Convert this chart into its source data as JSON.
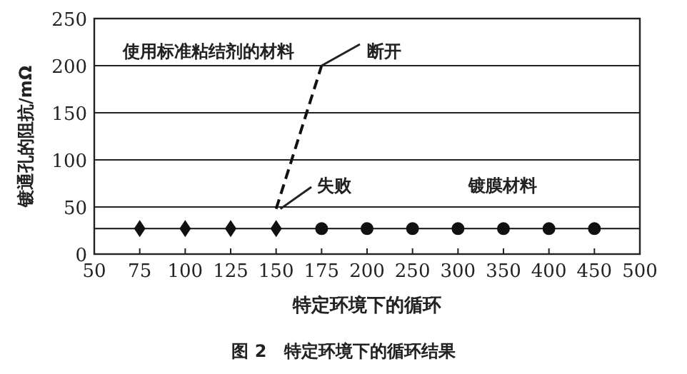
{
  "chart_data": {
    "type": "scatter",
    "xlabel": "特定环境下的循环",
    "ylabel": "镀通孔的阻抗/mΩ",
    "categories": [
      "50",
      "75",
      "100",
      "125",
      "150",
      "175",
      "200",
      "250",
      "300",
      "350",
      "400",
      "450",
      "500"
    ],
    "series": [
      {
        "marker": "diamond",
        "color": "#111111",
        "values": [
          null,
          27,
          27,
          27,
          27,
          null,
          null,
          null,
          null,
          null,
          null,
          null,
          null
        ]
      },
      {
        "marker": "circle",
        "color": "#111111",
        "values": [
          null,
          null,
          null,
          null,
          null,
          27,
          27,
          27,
          27,
          27,
          27,
          27,
          null
        ]
      },
      {
        "type": "line",
        "line_style": "dashed",
        "color": "#111111",
        "x": [
          "150",
          "175"
        ],
        "values": [
          48,
          200
        ]
      }
    ],
    "ref_lines": [
      {
        "axis": "y",
        "value": 27,
        "color": "#111111"
      }
    ],
    "ylim": [
      0,
      250
    ],
    "yticks": [
      0,
      50,
      100,
      150,
      200,
      250
    ],
    "grid": "y",
    "annotations": [
      "使用标准粘结剂的材料",
      "断开",
      "失败",
      "镀膜材料",
      "图 2　特定环境下的循环结果"
    ]
  }
}
